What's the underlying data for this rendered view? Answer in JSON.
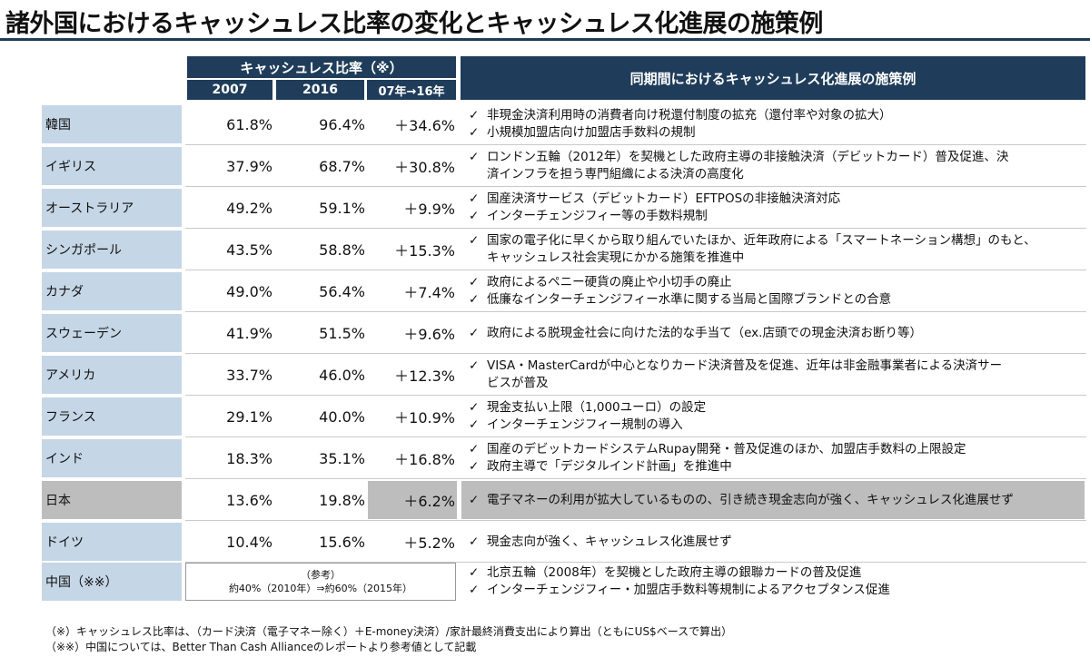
{
  "title": "諸外国におけるキャッシュレス比率の変化とキャッシュレス化進展の施策例",
  "header": {
    "ratio": "キャッシュレス比率（※）",
    "y2007": "2007",
    "y2016": "2016",
    "change": "07年→16年",
    "measures": "同期間におけるキャッシュレス化進展の施策例"
  },
  "check": "✓",
  "rows": [
    {
      "country": "韓国",
      "v2007": "61.8%",
      "v2016": "96.4%",
      "change": "＋34.6%",
      "m1": "非現金決済利用時の消費者向け税還付制度の拡充（還付率や対象の拡大）",
      "m2": "小規模加盟店向け加盟店手数料の規制"
    },
    {
      "country": "イギリス",
      "v2007": "37.9%",
      "v2016": "68.7%",
      "change": "＋30.8%",
      "m1": "ロンドン五輪（2012年）を契機とした政府主導の非接触決済（デビットカード）普及促進、決",
      "m1b": "済インフラを担う専門組織による決済の高度化"
    },
    {
      "country": "オーストラリア",
      "v2007": "49.2%",
      "v2016": "59.1%",
      "change": "＋9.9%",
      "m1": "国産決済サービス（デビットカード）EFTPOSの非接触決済対応",
      "m2": "インターチェンジフィー等の手数料規制"
    },
    {
      "country": "シンガポール",
      "v2007": "43.5%",
      "v2016": "58.8%",
      "change": "＋15.3%",
      "m1": "国家の電子化に早くから取り組んでいたほか、近年政府による「スマートネーション構想」のもと、",
      "m1b": "キャッシュレス社会実現にかかる施策を推進中"
    },
    {
      "country": "カナダ",
      "v2007": "49.0%",
      "v2016": "56.4%",
      "change": "＋7.4%",
      "m1": "政府によるペニー硬貨の廃止や小切手の廃止",
      "m2": "低廉なインターチェンジフィー水準に関する当局と国際ブランドとの合意"
    },
    {
      "country": "スウェーデン",
      "v2007": "41.9%",
      "v2016": "51.5%",
      "change": "＋9.6%",
      "m1": "政府による脱現金社会に向けた法的な手当て（ex.店頭での現金決済お断り等）"
    },
    {
      "country": "アメリカ",
      "v2007": "33.7%",
      "v2016": "46.0%",
      "change": "＋12.3%",
      "m1": "VISA・MasterCardが中心となりカード決済普及を促進、近年は非金融事業者による決済サー",
      "m1b": "ビスが普及"
    },
    {
      "country": "フランス",
      "v2007": "29.1%",
      "v2016": "40.0%",
      "change": "＋10.9%",
      "m1": "現金支払い上限（1,000ユーロ）の設定",
      "m2": "インターチェンジフィー規制の導入"
    },
    {
      "country": "インド",
      "v2007": "18.3%",
      "v2016": "35.1%",
      "change": "＋16.8%",
      "m1": "国産のデビットカードシステムRupay開発・普及促進のほか、加盟店手数料の上限設定",
      "m2": "政府主導で「デジタルインド計画」を推進中"
    },
    {
      "country": "日本",
      "v2007": "13.6%",
      "v2016": "19.8%",
      "change": "＋6.2%",
      "m1": "電子マネーの利用が拡大しているものの、引き続き現金志向が強く、キャッシュレス化進展せず"
    },
    {
      "country": "ドイツ",
      "v2007": "10.4%",
      "v2016": "15.6%",
      "change": "＋5.2%",
      "m1": "現金志向が強く、キャッシュレス化進展せず"
    }
  ],
  "china": {
    "country": "中国（※※）",
    "ref_label": "（参考）",
    "ref_value": "約40%（2010年）⇒約60%（2015年）",
    "m1": "北京五輪（2008年）を契機とした政府主導の銀聯カードの普及促進",
    "m2": "インターチェンジフィー・加盟店手数料等規制によるアクセプタンス促進"
  },
  "notes": {
    "n1": "（※）キャッシュレス比率は、（カード決済（電子マネー除く）＋E-money決済）/家計最終消費支出により算出（ともにUS$ベースで算出）",
    "n2": "（※※）中国については、Better Than Cash Allianceのレポートより参考値として記載"
  }
}
